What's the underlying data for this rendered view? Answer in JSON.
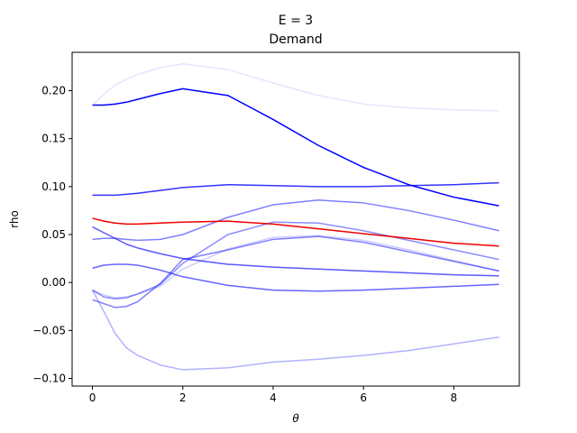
{
  "chart_data": {
    "type": "line",
    "title": "E = 3",
    "subtitle": "Demand",
    "xlabel": "θ",
    "ylabel": "rho",
    "xlim": [
      -0.45,
      9.45
    ],
    "ylim": [
      -0.108,
      0.24
    ],
    "xticks": [
      0,
      2,
      4,
      6,
      8
    ],
    "yticks": [
      -0.1,
      -0.05,
      0.0,
      0.05,
      0.1,
      0.15,
      0.2
    ],
    "ytick_labels": [
      "−0.10",
      "−0.05",
      "0.00",
      "0.05",
      "0.10",
      "0.15",
      "0.20"
    ],
    "grid": false,
    "x": [
      0,
      0.25,
      0.5,
      0.75,
      1,
      1.5,
      2,
      3,
      4,
      5,
      6,
      7,
      8,
      9
    ],
    "series": [
      {
        "color": "#0000ff",
        "opacity": 0.1,
        "values": [
          0.185,
          0.196,
          0.206,
          0.212,
          0.217,
          0.224,
          0.228,
          0.222,
          0.208,
          0.195,
          0.186,
          0.182,
          0.18,
          0.179
        ]
      },
      {
        "color": "#0000ff",
        "opacity": 1.0,
        "values": [
          0.185,
          0.185,
          0.186,
          0.188,
          0.191,
          0.197,
          0.202,
          0.195,
          0.17,
          0.143,
          0.12,
          0.102,
          0.089,
          0.08
        ]
      },
      {
        "color": "#0000ff",
        "opacity": 0.8,
        "values": [
          0.091,
          0.091,
          0.091,
          0.092,
          0.093,
          0.096,
          0.099,
          0.102,
          0.101,
          0.1,
          0.1,
          0.101,
          0.102,
          0.104
        ]
      },
      {
        "color": "#0000ff",
        "opacity": 0.5,
        "values": [
          0.045,
          0.046,
          0.046,
          0.045,
          0.044,
          0.045,
          0.05,
          0.068,
          0.081,
          0.086,
          0.083,
          0.075,
          0.065,
          0.054
        ]
      },
      {
        "color": "#0000ff",
        "opacity": 0.45,
        "values": [
          -0.008,
          -0.015,
          -0.017,
          -0.016,
          -0.012,
          -0.002,
          0.02,
          0.05,
          0.063,
          0.062,
          0.054,
          0.044,
          0.034,
          0.024
        ]
      },
      {
        "color": "#0000ff",
        "opacity": 0.2,
        "values": [
          -0.008,
          -0.013,
          -0.016,
          -0.015,
          -0.012,
          -0.004,
          0.014,
          0.035,
          0.047,
          0.049,
          0.044,
          0.034,
          0.023,
          0.012
        ]
      },
      {
        "color": "#0000ff",
        "opacity": 0.65,
        "values": [
          0.058,
          0.052,
          0.046,
          0.04,
          0.036,
          0.03,
          0.025,
          0.019,
          0.016,
          0.014,
          0.012,
          0.01,
          0.008,
          0.007
        ]
      },
      {
        "color": "#0000ff",
        "opacity": 0.6,
        "values": [
          0.015,
          0.018,
          0.019,
          0.019,
          0.018,
          0.013,
          0.006,
          -0.003,
          -0.008,
          -0.009,
          -0.008,
          -0.006,
          -0.004,
          -0.002
        ]
      },
      {
        "color": "#0000ff",
        "opacity": 0.3,
        "values": [
          -0.008,
          -0.03,
          -0.053,
          -0.068,
          -0.076,
          -0.086,
          -0.091,
          -0.089,
          -0.083,
          -0.08,
          -0.076,
          -0.071,
          -0.064,
          -0.057
        ]
      },
      {
        "color": "#0000ff",
        "opacity": 0.5,
        "values": [
          -0.018,
          -0.022,
          -0.026,
          -0.025,
          -0.02,
          -0.001,
          0.024,
          0.034,
          0.045,
          0.048,
          0.042,
          0.032,
          0.022,
          0.012
        ]
      },
      {
        "color": "#ee0000",
        "opacity": 1.0,
        "values": [
          0.067,
          0.064,
          0.062,
          0.061,
          0.061,
          0.062,
          0.063,
          0.064,
          0.061,
          0.056,
          0.051,
          0.046,
          0.041,
          0.038
        ]
      }
    ]
  }
}
